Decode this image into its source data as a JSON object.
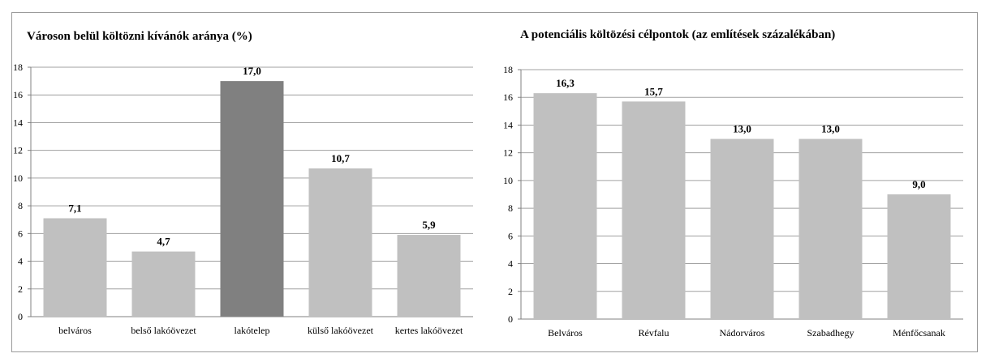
{
  "chart_data": [
    {
      "type": "bar",
      "title": "Városon belül költözni kívánók aránya (%)",
      "categories": [
        "belváros",
        "belső lakóövezet",
        "lakótelep",
        "külső lakóövezet",
        "kertes lakóövezet"
      ],
      "values": [
        7.1,
        4.7,
        17.0,
        10.7,
        5.9
      ],
      "value_labels": [
        "7,1",
        "4,7",
        "17,0",
        "10,7",
        "5,9"
      ],
      "ylim": [
        0,
        18
      ],
      "yticks": [
        0,
        2,
        4,
        6,
        8,
        10,
        12,
        14,
        16,
        18
      ],
      "grid": true,
      "colors": {
        "default": "#c0c0c0",
        "highlight": "#808080"
      },
      "highlight_index": 2
    },
    {
      "type": "bar",
      "title": "A potenciális költözési célpontok (az említések százalékában)",
      "categories": [
        "Belváros",
        "Révfalu",
        "Nádorváros",
        "Szabadhegy",
        "Ménfőcsanak"
      ],
      "values": [
        16.3,
        15.7,
        13.0,
        13.0,
        9.0
      ],
      "value_labels": [
        "16,3",
        "15,7",
        "13,0",
        "13,0",
        "9,0"
      ],
      "ylim": [
        0,
        18
      ],
      "yticks": [
        0,
        2,
        4,
        6,
        8,
        10,
        12,
        14,
        16,
        18
      ],
      "grid": true,
      "colors": {
        "default": "#c0c0c0"
      }
    }
  ]
}
